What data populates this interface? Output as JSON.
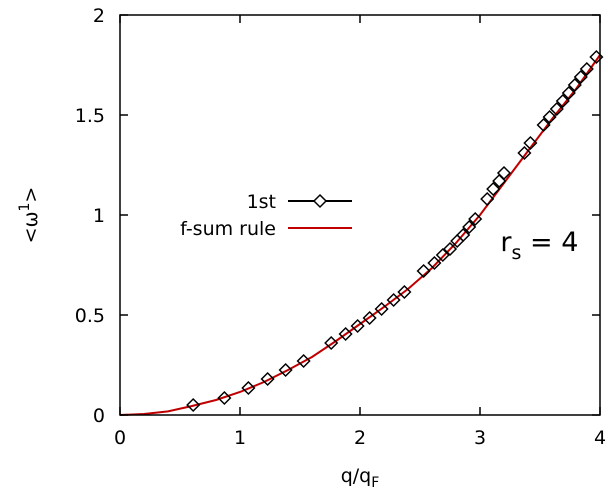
{
  "chart_data": {
    "type": "line",
    "xlabel": "q/q",
    "xlabel_sub": "F",
    "ylabel": "<ω",
    "ylabel_sup": "1",
    "ylabel_end": ">",
    "xlim": [
      0,
      4
    ],
    "ylim": [
      0,
      2
    ],
    "x_ticks": [
      0,
      1,
      2,
      3,
      4
    ],
    "x_tick_labels": [
      "0",
      "1",
      "2",
      "3",
      "4"
    ],
    "y_ticks": [
      0,
      0.5,
      1,
      1.5,
      2
    ],
    "y_tick_labels": [
      "0",
      "0.5",
      "1",
      "1.5",
      "2"
    ],
    "grid": false,
    "legend_position": "center-left",
    "annotation": {
      "text": "r",
      "sub": "s",
      "rest": " = 4",
      "x": 3.17,
      "y": 0.82
    },
    "series": [
      {
        "name": "1st",
        "color": "#000000",
        "marker": "diamond",
        "line": false,
        "x": [
          0.61,
          0.87,
          1.07,
          1.23,
          1.38,
          1.53,
          1.76,
          1.88,
          1.98,
          2.08,
          2.18,
          2.28,
          2.37,
          2.53,
          2.62,
          2.69,
          2.75,
          2.81,
          2.86,
          2.91,
          2.96,
          3.06,
          3.11,
          3.16,
          3.2,
          3.37,
          3.42,
          3.53,
          3.58,
          3.64,
          3.69,
          3.74,
          3.79,
          3.84,
          3.89,
          3.97
        ],
        "y": [
          0.05,
          0.085,
          0.135,
          0.18,
          0.225,
          0.27,
          0.36,
          0.405,
          0.445,
          0.485,
          0.53,
          0.575,
          0.615,
          0.72,
          0.76,
          0.8,
          0.83,
          0.87,
          0.9,
          0.94,
          0.98,
          1.08,
          1.13,
          1.17,
          1.21,
          1.31,
          1.36,
          1.45,
          1.49,
          1.53,
          1.57,
          1.61,
          1.65,
          1.69,
          1.73,
          1.79
        ]
      },
      {
        "name": "f-sum rule",
        "color": "#c00000",
        "marker": "none",
        "line": true,
        "x": [
          0,
          0.2,
          0.4,
          0.6,
          0.8,
          1.0,
          1.2,
          1.4,
          1.6,
          1.8,
          2.0,
          2.2,
          2.4,
          2.6,
          2.8,
          3.0,
          3.2,
          3.4,
          3.6,
          3.8,
          4.0
        ],
        "y": [
          0,
          0.005,
          0.018,
          0.045,
          0.075,
          0.115,
          0.165,
          0.225,
          0.29,
          0.37,
          0.455,
          0.54,
          0.63,
          0.735,
          0.86,
          1.0,
          1.16,
          1.32,
          1.48,
          1.63,
          1.8
        ]
      }
    ]
  }
}
